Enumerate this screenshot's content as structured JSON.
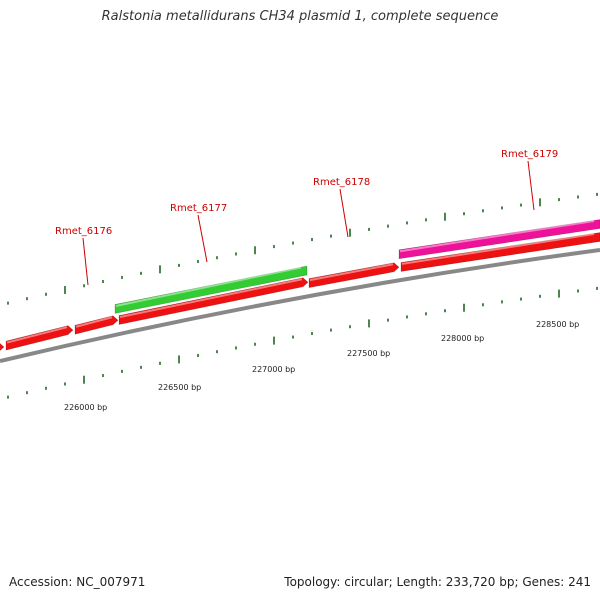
{
  "title": "Ralstonia metallidurans CH34 plasmid 1, complete sequence",
  "footer": {
    "accession": "Accession: NC_007971",
    "topology": "Topology: circular; Length: 233,720 bp; Genes: 241"
  },
  "colors": {
    "backbone": "#888888",
    "forward_gene": "#ee1111",
    "green_gene": "#33cc33",
    "magenta_gene": "#ee1199",
    "tick": "#226622",
    "label_line": "#cc0000",
    "label_text": "#cc0000"
  },
  "gene_labels": [
    {
      "text": "Rmet_6176"
    },
    {
      "text": "Rmet_6177"
    },
    {
      "text": "Rmet_6178"
    },
    {
      "text": "Rmet_6179"
    }
  ],
  "scale_labels": [
    {
      "text": "226000 bp"
    },
    {
      "text": "226500 bp"
    },
    {
      "text": "227000 bp"
    },
    {
      "text": "227500 bp"
    },
    {
      "text": "228000 bp"
    },
    {
      "text": "228500 bp"
    }
  ]
}
